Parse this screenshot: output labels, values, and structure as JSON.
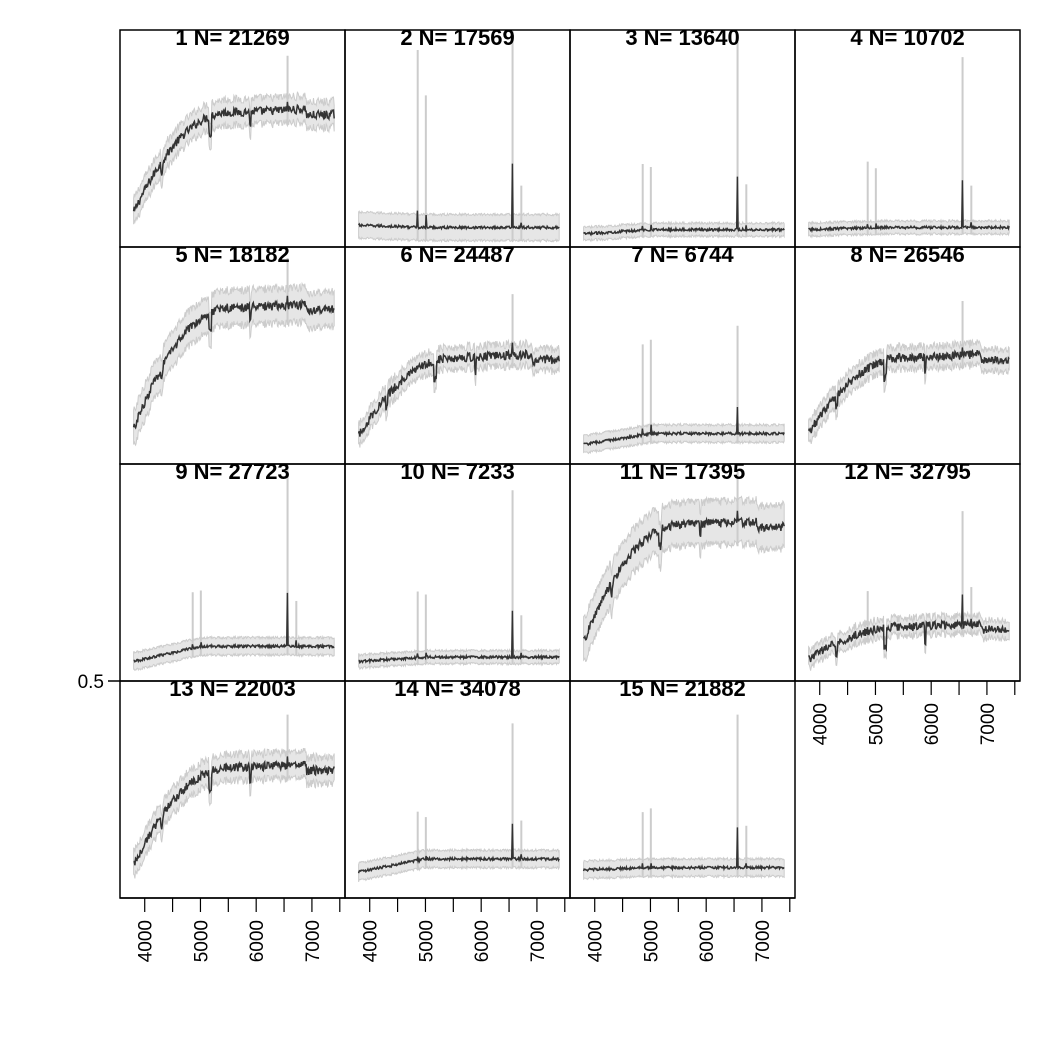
{
  "chart_data": {
    "type": "line",
    "layout": "small-multiples 4x4 (15 panels)",
    "x_ticks": [
      4000,
      5000,
      6000,
      7000
    ],
    "x_tick_labels": [
      "4000",
      "5000",
      "6000",
      "7000"
    ],
    "xlim": [
      3700,
      7450
    ],
    "y_ticks": [
      0.5
    ],
    "y_tick_labels": [
      "0.5"
    ],
    "style": {
      "line_color": "#333333",
      "band_fill": "#e6e6e6",
      "band_edge": "#cccccc",
      "spike_color": "#cccccc",
      "frame_color": "#000000"
    },
    "panels": [
      {
        "label": "1   N= 21269",
        "profile": "rising",
        "start": 0.16,
        "plateau": 0.62,
        "band": 0.06,
        "emission": [
          [
            6563,
            0.1
          ]
        ]
      },
      {
        "label": "2   N= 17569",
        "profile": "flat",
        "start": 0.1,
        "plateau": 0.09,
        "band": 0.06,
        "emission": [
          [
            4861,
            0.45
          ],
          [
            5007,
            0.32
          ],
          [
            6563,
            0.6
          ],
          [
            6720,
            0.06
          ]
        ]
      },
      {
        "label": "3   N= 13640",
        "profile": "flat",
        "start": 0.06,
        "plateau": 0.08,
        "band": 0.03,
        "emission": [
          [
            4861,
            0.13
          ],
          [
            5007,
            0.12
          ],
          [
            6563,
            0.48
          ],
          [
            6720,
            0.07
          ]
        ]
      },
      {
        "label": "4   N= 10702",
        "profile": "flat",
        "start": 0.08,
        "plateau": 0.09,
        "band": 0.03,
        "emission": [
          [
            4861,
            0.13
          ],
          [
            5007,
            0.11
          ],
          [
            6563,
            0.43
          ],
          [
            6720,
            0.06
          ]
        ]
      },
      {
        "label": "5   N= 18182",
        "profile": "rising",
        "start": 0.16,
        "plateau": 0.72,
        "band": 0.08,
        "emission": [
          [
            6563,
            0.08
          ]
        ]
      },
      {
        "label": "6   N= 24487",
        "profile": "rising",
        "start": 0.13,
        "plateau": 0.49,
        "band": 0.05,
        "emission": [
          [
            6563,
            0.12
          ]
        ]
      },
      {
        "label": "7   N= 6744",
        "profile": "flat",
        "start": 0.09,
        "plateau": 0.14,
        "band": 0.04,
        "emission": [
          [
            4861,
            0.2
          ],
          [
            5007,
            0.21
          ],
          [
            6563,
            0.25
          ]
        ]
      },
      {
        "label": "8   N= 26546",
        "profile": "rising",
        "start": 0.14,
        "plateau": 0.49,
        "band": 0.05,
        "emission": [
          [
            6563,
            0.1
          ]
        ]
      },
      {
        "label": "9   N= 27723",
        "profile": "flat",
        "start": 0.09,
        "plateau": 0.16,
        "band": 0.04,
        "emission": [
          [
            4861,
            0.1
          ],
          [
            5007,
            0.1
          ],
          [
            6563,
            0.48
          ],
          [
            6720,
            0.07
          ]
        ]
      },
      {
        "label": "10   N= 7233",
        "profile": "flat",
        "start": 0.09,
        "plateau": 0.11,
        "band": 0.03,
        "emission": [
          [
            4861,
            0.13
          ],
          [
            5007,
            0.12
          ],
          [
            6563,
            0.42
          ],
          [
            6720,
            0.06
          ]
        ]
      },
      {
        "label": "11   N= 17395",
        "profile": "rising",
        "start": 0.18,
        "plateau": 0.72,
        "band": 0.1,
        "emission": [
          [
            6563,
            0.09
          ]
        ]
      },
      {
        "label": "12   N= 32795",
        "profile": "rising",
        "start": 0.1,
        "plateau": 0.25,
        "band": 0.04,
        "emission": [
          [
            4861,
            0.06
          ],
          [
            6563,
            0.27
          ],
          [
            6720,
            0.05
          ]
        ]
      },
      {
        "label": "13   N= 22003",
        "profile": "rising",
        "start": 0.15,
        "plateau": 0.6,
        "band": 0.06,
        "emission": [
          [
            6563,
            0.09
          ]
        ]
      },
      {
        "label": "14   N= 34078",
        "profile": "flat",
        "start": 0.12,
        "plateau": 0.18,
        "band": 0.04,
        "emission": [
          [
            4861,
            0.08
          ],
          [
            5007,
            0.06
          ],
          [
            6563,
            0.33
          ],
          [
            6720,
            0.05
          ]
        ]
      },
      {
        "label": "15   N= 21882",
        "profile": "flat",
        "start": 0.13,
        "plateau": 0.14,
        "band": 0.04,
        "emission": [
          [
            4861,
            0.1
          ],
          [
            5007,
            0.11
          ],
          [
            6563,
            0.38
          ],
          [
            6720,
            0.06
          ]
        ]
      }
    ]
  }
}
